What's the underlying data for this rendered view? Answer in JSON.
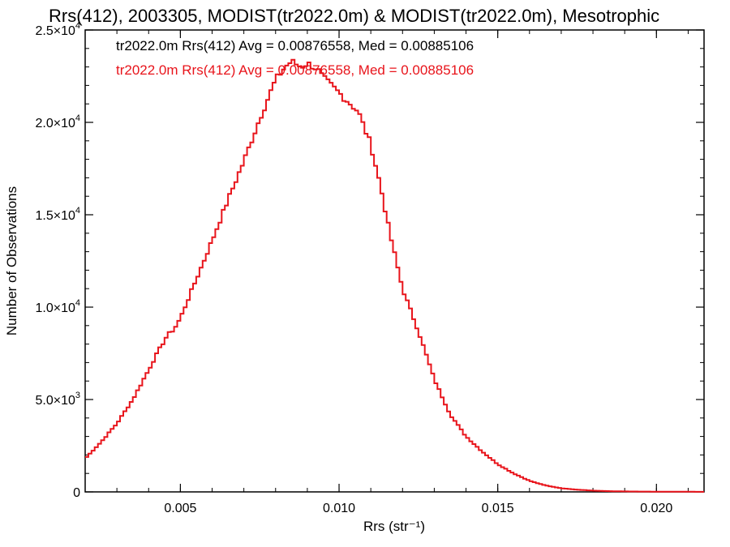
{
  "chart_data": {
    "type": "histogram",
    "title": "Rrs(412), 2003305, MODIST(tr2022.0m) & MODIST(tr2022.0m), Mesotrophic",
    "xlabel": "Rrs (str⁻¹)",
    "ylabel": "Number of Observations",
    "xlim": [
      0.002,
      0.0215
    ],
    "ylim": [
      0,
      25000
    ],
    "x_ticks": [
      {
        "value": 0.005,
        "label": "0.005"
      },
      {
        "value": 0.01,
        "label": "0.010"
      },
      {
        "value": 0.015,
        "label": "0.015"
      },
      {
        "value": 0.02,
        "label": "0.020"
      }
    ],
    "y_ticks": [
      {
        "value": 0,
        "mant": "0",
        "exp": ""
      },
      {
        "value": 5000,
        "mant": "5.0×10",
        "exp": "3"
      },
      {
        "value": 10000,
        "mant": "1.0×10",
        "exp": "4"
      },
      {
        "value": 15000,
        "mant": "1.5×10",
        "exp": "4"
      },
      {
        "value": 20000,
        "mant": "2.0×10",
        "exp": "4"
      },
      {
        "value": 25000,
        "mant": "2.5×10",
        "exp": "4"
      }
    ],
    "legend": [
      {
        "text": "tr2022.0m Rrs(412) Avg = 0.00876558, Med = 0.00885106",
        "color": "#000000"
      },
      {
        "text": "tr2022.0m Rrs(412) Avg = 0.00876558, Med = 0.00885106",
        "color": "#e8141b"
      }
    ],
    "legend_position": "top-left",
    "grid": false,
    "series": [
      {
        "color": "#e8141b",
        "step": "histogram",
        "x": [
          0.002,
          0.0025,
          0.003,
          0.0035,
          0.004,
          0.0043,
          0.0046,
          0.0048,
          0.005,
          0.0055,
          0.006,
          0.0065,
          0.007,
          0.0075,
          0.008,
          0.0083,
          0.0085,
          0.0088,
          0.009,
          0.0093,
          0.0095,
          0.01,
          0.0103,
          0.0106,
          0.011,
          0.0113,
          0.0116,
          0.012,
          0.0125,
          0.013,
          0.0135,
          0.014,
          0.0145,
          0.015,
          0.0155,
          0.016,
          0.0165,
          0.017,
          0.0175,
          0.018,
          0.0185,
          0.019,
          0.02,
          0.021,
          0.0215
        ],
        "y": [
          1800,
          2700,
          3700,
          5000,
          6600,
          7600,
          8500,
          8800,
          9400,
          11500,
          13600,
          15800,
          17900,
          20200,
          22300,
          23000,
          23300,
          23000,
          23200,
          22900,
          22400,
          21600,
          21100,
          20600,
          18800,
          16600,
          14000,
          11000,
          8700,
          6100,
          4200,
          3000,
          2200,
          1500,
          1000,
          600,
          350,
          200,
          120,
          70,
          40,
          25,
          12,
          8,
          5
        ]
      }
    ]
  }
}
